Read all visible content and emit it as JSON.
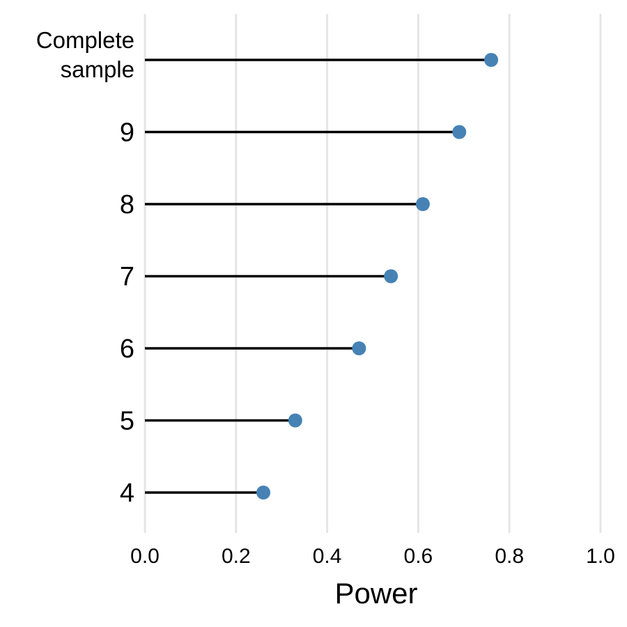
{
  "chart_data": {
    "type": "lollipop",
    "xlabel": "Power",
    "ylabel": "",
    "xlim": [
      0.0,
      1.0
    ],
    "x_ticks": [
      0.0,
      0.2,
      0.4,
      0.6,
      0.8,
      1.0
    ],
    "x_tick_labels": [
      "0.0",
      "0.2",
      "0.4",
      "0.6",
      "0.8",
      "1.0"
    ],
    "grid": "vertical",
    "categories": [
      "Complete sample",
      "9",
      "8",
      "7",
      "6",
      "5",
      "4"
    ],
    "category_labels": [
      [
        "Complete",
        "sample"
      ],
      [
        "9"
      ],
      [
        "8"
      ],
      [
        "7"
      ],
      [
        "6"
      ],
      [
        "5"
      ],
      [
        "4"
      ]
    ],
    "values": [
      0.76,
      0.69,
      0.61,
      0.54,
      0.47,
      0.33,
      0.26
    ],
    "point_color": "#4682B4",
    "stem_color": "#000000",
    "grid_color": "#E5E5E5"
  }
}
